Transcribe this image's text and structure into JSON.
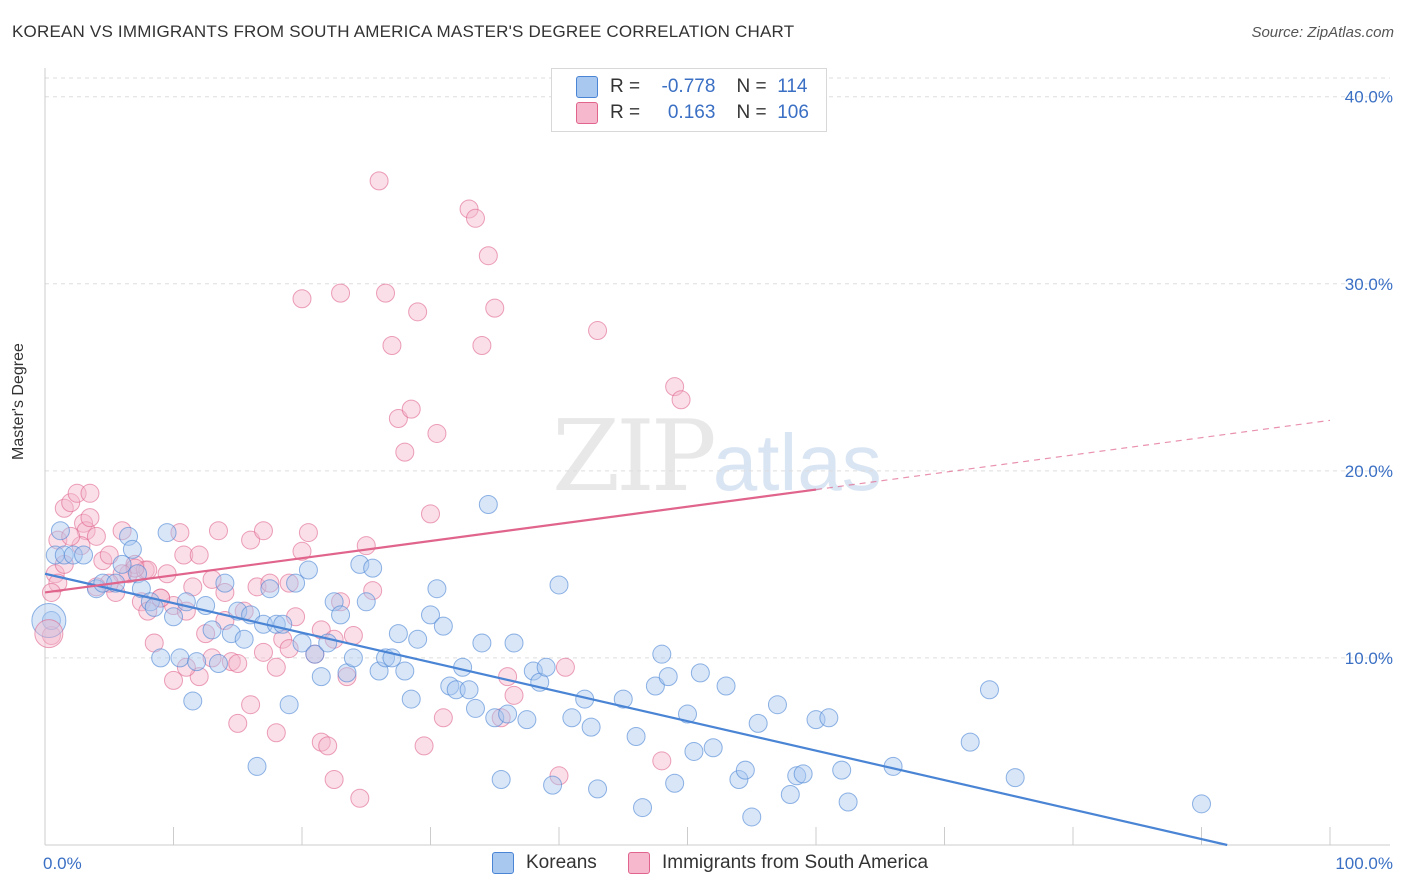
{
  "title": "KOREAN VS IMMIGRANTS FROM SOUTH AMERICA MASTER'S DEGREE CORRELATION CHART",
  "source": "Source: ZipAtlas.com",
  "watermark": {
    "zip": "ZIP",
    "atlas": "atlas"
  },
  "legend": {
    "rows": [
      {
        "r_label": "R =",
        "r_value": "-0.778",
        "n_label": "N =",
        "n_value": "114",
        "color": "#a8c8f0"
      },
      {
        "r_label": "R =",
        "r_value": "0.163",
        "n_label": "N =",
        "n_value": "106",
        "color": "#f5b8cc"
      }
    ]
  },
  "bottom_legend": {
    "series1": "Koreans",
    "series2": "Immigrants from South America"
  },
  "chart_data": {
    "type": "scatter",
    "title": "KOREAN VS IMMIGRANTS FROM SOUTH AMERICA MASTER'S DEGREE CORRELATION CHART",
    "xlabel": "",
    "ylabel": "Master's Degree",
    "xlim": [
      0,
      100
    ],
    "ylim": [
      0,
      41
    ],
    "x_tick_labels": [
      "0.0%",
      "100.0%"
    ],
    "y_tick_labels": [
      "10.0%",
      "20.0%",
      "30.0%",
      "40.0%"
    ],
    "y_ticks": [
      10,
      20,
      30,
      40
    ],
    "grid": true,
    "legend_position": "top-center",
    "colors": {
      "koreans": "#4a84d4",
      "koreans_fill": "#a8c8f0",
      "immigrants": "#e0648c",
      "immigrants_fill": "#f5b8cc"
    },
    "trend_lines": [
      {
        "series": "Koreans",
        "x0": 0,
        "y0": 14.5,
        "x1": 92,
        "y1": 0,
        "dashed_ext": false
      },
      {
        "series": "Immigrants from South America",
        "x0": 0,
        "y0": 13.5,
        "x1": 60,
        "y1": 19.0,
        "ext_x1": 100,
        "ext_y1": 22.7
      }
    ],
    "series": [
      {
        "name": "Koreans",
        "points": [
          [
            0.5,
            12.0
          ],
          [
            0.8,
            15.5
          ],
          [
            1.2,
            16.8
          ],
          [
            1.5,
            15.5
          ],
          [
            2.2,
            15.5
          ],
          [
            3.0,
            15.5
          ],
          [
            4.0,
            13.7
          ],
          [
            4.5,
            14.0
          ],
          [
            5.5,
            14.0
          ],
          [
            6.0,
            15.0
          ],
          [
            6.5,
            16.5
          ],
          [
            6.8,
            15.8
          ],
          [
            7.2,
            14.5
          ],
          [
            7.5,
            13.7
          ],
          [
            8.2,
            13.0
          ],
          [
            8.5,
            12.7
          ],
          [
            9.0,
            10.0
          ],
          [
            9.5,
            16.7
          ],
          [
            10.0,
            12.2
          ],
          [
            10.5,
            10.0
          ],
          [
            11.0,
            13.0
          ],
          [
            11.5,
            7.7
          ],
          [
            11.8,
            9.8
          ],
          [
            12.5,
            12.8
          ],
          [
            13.0,
            11.5
          ],
          [
            13.5,
            9.7
          ],
          [
            14.0,
            14.0
          ],
          [
            14.5,
            11.3
          ],
          [
            15.0,
            12.5
          ],
          [
            15.5,
            11.0
          ],
          [
            16.0,
            12.3
          ],
          [
            16.5,
            4.2
          ],
          [
            17.0,
            11.8
          ],
          [
            17.5,
            13.7
          ],
          [
            18.0,
            11.8
          ],
          [
            18.5,
            11.8
          ],
          [
            19.0,
            7.5
          ],
          [
            19.5,
            14.0
          ],
          [
            20.0,
            10.8
          ],
          [
            20.5,
            14.7
          ],
          [
            21.0,
            10.2
          ],
          [
            21.5,
            9.0
          ],
          [
            22.0,
            10.8
          ],
          [
            22.5,
            13.0
          ],
          [
            23.0,
            12.3
          ],
          [
            23.5,
            9.2
          ],
          [
            24.0,
            10.0
          ],
          [
            24.5,
            15.0
          ],
          [
            25.0,
            13.0
          ],
          [
            25.5,
            14.8
          ],
          [
            26.0,
            9.3
          ],
          [
            26.5,
            10.0
          ],
          [
            27.0,
            10.0
          ],
          [
            27.5,
            11.3
          ],
          [
            28.0,
            9.3
          ],
          [
            28.5,
            7.8
          ],
          [
            29.0,
            11.0
          ],
          [
            30.0,
            12.3
          ],
          [
            30.5,
            13.7
          ],
          [
            31.0,
            11.7
          ],
          [
            31.5,
            8.5
          ],
          [
            32.0,
            8.3
          ],
          [
            32.5,
            9.5
          ],
          [
            33.0,
            8.3
          ],
          [
            33.5,
            7.3
          ],
          [
            34.0,
            10.8
          ],
          [
            34.5,
            18.2
          ],
          [
            35.0,
            6.8
          ],
          [
            35.5,
            3.5
          ],
          [
            36.0,
            7.0
          ],
          [
            36.5,
            10.8
          ],
          [
            37.5,
            6.7
          ],
          [
            38.0,
            9.3
          ],
          [
            38.5,
            8.7
          ],
          [
            39.0,
            9.5
          ],
          [
            39.5,
            3.2
          ],
          [
            40.0,
            13.9
          ],
          [
            41.0,
            6.8
          ],
          [
            42.0,
            7.8
          ],
          [
            42.5,
            6.3
          ],
          [
            43.0,
            3.0
          ],
          [
            45.0,
            7.8
          ],
          [
            46.0,
            5.8
          ],
          [
            46.5,
            2.0
          ],
          [
            47.5,
            8.5
          ],
          [
            48.0,
            10.2
          ],
          [
            48.5,
            9.0
          ],
          [
            49.0,
            3.3
          ],
          [
            50.0,
            7.0
          ],
          [
            50.5,
            5.0
          ],
          [
            51.0,
            9.2
          ],
          [
            52.0,
            5.2
          ],
          [
            53.0,
            8.5
          ],
          [
            54.0,
            3.5
          ],
          [
            54.5,
            4.0
          ],
          [
            55.0,
            1.5
          ],
          [
            55.5,
            6.5
          ],
          [
            57.0,
            7.5
          ],
          [
            58.0,
            2.7
          ],
          [
            58.5,
            3.7
          ],
          [
            59.0,
            3.8
          ],
          [
            60.0,
            6.7
          ],
          [
            61.0,
            6.8
          ],
          [
            62.0,
            4.0
          ],
          [
            62.5,
            2.3
          ],
          [
            66.0,
            4.2
          ],
          [
            72.0,
            5.5
          ],
          [
            73.5,
            8.3
          ],
          [
            75.5,
            3.6
          ],
          [
            90.0,
            2.2
          ]
        ]
      },
      {
        "name": "Immigrants from South America",
        "points": [
          [
            0.5,
            11.2
          ],
          [
            0.8,
            14.5
          ],
          [
            1.0,
            16.3
          ],
          [
            1.5,
            18.0
          ],
          [
            2.0,
            18.3
          ],
          [
            2.5,
            18.8
          ],
          [
            3.0,
            17.2
          ],
          [
            3.2,
            16.8
          ],
          [
            3.5,
            18.8
          ],
          [
            4.0,
            16.5
          ],
          [
            4.5,
            15.2
          ],
          [
            5.0,
            15.5
          ],
          [
            5.5,
            13.5
          ],
          [
            6.0,
            16.8
          ],
          [
            6.5,
            14.5
          ],
          [
            7.0,
            15.0
          ],
          [
            7.5,
            13.0
          ],
          [
            7.8,
            14.7
          ],
          [
            8.0,
            12.5
          ],
          [
            8.5,
            10.8
          ],
          [
            9.0,
            13.2
          ],
          [
            9.5,
            14.5
          ],
          [
            10.0,
            12.8
          ],
          [
            10.5,
            16.7
          ],
          [
            10.8,
            15.5
          ],
          [
            11.0,
            12.5
          ],
          [
            11.5,
            13.8
          ],
          [
            12.0,
            9.0
          ],
          [
            12.5,
            11.3
          ],
          [
            13.0,
            14.2
          ],
          [
            13.5,
            16.8
          ],
          [
            14.0,
            13.5
          ],
          [
            14.5,
            9.8
          ],
          [
            15.0,
            9.7
          ],
          [
            15.5,
            12.5
          ],
          [
            16.0,
            16.3
          ],
          [
            16.5,
            13.8
          ],
          [
            17.0,
            10.3
          ],
          [
            17.5,
            14.0
          ],
          [
            18.0,
            9.5
          ],
          [
            18.5,
            11.0
          ],
          [
            19.0,
            14.0
          ],
          [
            19.5,
            12.2
          ],
          [
            20.0,
            15.7
          ],
          [
            20.5,
            16.7
          ],
          [
            21.0,
            10.2
          ],
          [
            21.5,
            5.5
          ],
          [
            22.0,
            5.3
          ],
          [
            22.5,
            3.5
          ],
          [
            23.0,
            13.0
          ],
          [
            23.5,
            9.0
          ],
          [
            24.0,
            11.2
          ],
          [
            24.5,
            2.5
          ],
          [
            25.0,
            16.0
          ],
          [
            25.5,
            13.6
          ],
          [
            26.0,
            35.5
          ],
          [
            26.5,
            29.5
          ],
          [
            27.0,
            26.7
          ],
          [
            27.5,
            22.8
          ],
          [
            28.0,
            21.0
          ],
          [
            28.5,
            23.3
          ],
          [
            29.0,
            28.5
          ],
          [
            29.5,
            5.3
          ],
          [
            30.0,
            17.7
          ],
          [
            30.5,
            22.0
          ],
          [
            31.0,
            6.8
          ],
          [
            33.0,
            34.0
          ],
          [
            33.5,
            33.5
          ],
          [
            34.0,
            26.7
          ],
          [
            34.5,
            31.5
          ],
          [
            35.0,
            28.7
          ],
          [
            35.5,
            6.8
          ],
          [
            36.0,
            9.0
          ],
          [
            36.5,
            8.0
          ],
          [
            40.0,
            3.7
          ],
          [
            40.5,
            9.5
          ],
          [
            43.0,
            27.5
          ],
          [
            48.0,
            4.5
          ],
          [
            49.0,
            24.5
          ],
          [
            49.5,
            23.8
          ],
          [
            20.0,
            29.2
          ],
          [
            23.0,
            29.5
          ],
          [
            17.0,
            16.8
          ],
          [
            14.0,
            12.0
          ],
          [
            12.0,
            15.5
          ],
          [
            9.0,
            13.2
          ],
          [
            8.0,
            14.7
          ],
          [
            7.0,
            14.8
          ],
          [
            6.0,
            14.5
          ],
          [
            5.0,
            14.0
          ],
          [
            4.0,
            13.8
          ],
          [
            3.5,
            17.5
          ],
          [
            2.8,
            16.0
          ],
          [
            2.0,
            16.5
          ],
          [
            1.5,
            15.0
          ],
          [
            1.0,
            14.0
          ],
          [
            0.5,
            13.5
          ],
          [
            18.0,
            6.0
          ],
          [
            16.0,
            7.5
          ],
          [
            15.0,
            6.5
          ],
          [
            13.0,
            10.0
          ],
          [
            11.0,
            9.5
          ],
          [
            10.0,
            8.8
          ],
          [
            19.0,
            10.5
          ],
          [
            21.5,
            11.5
          ],
          [
            22.5,
            11.0
          ]
        ]
      }
    ]
  }
}
